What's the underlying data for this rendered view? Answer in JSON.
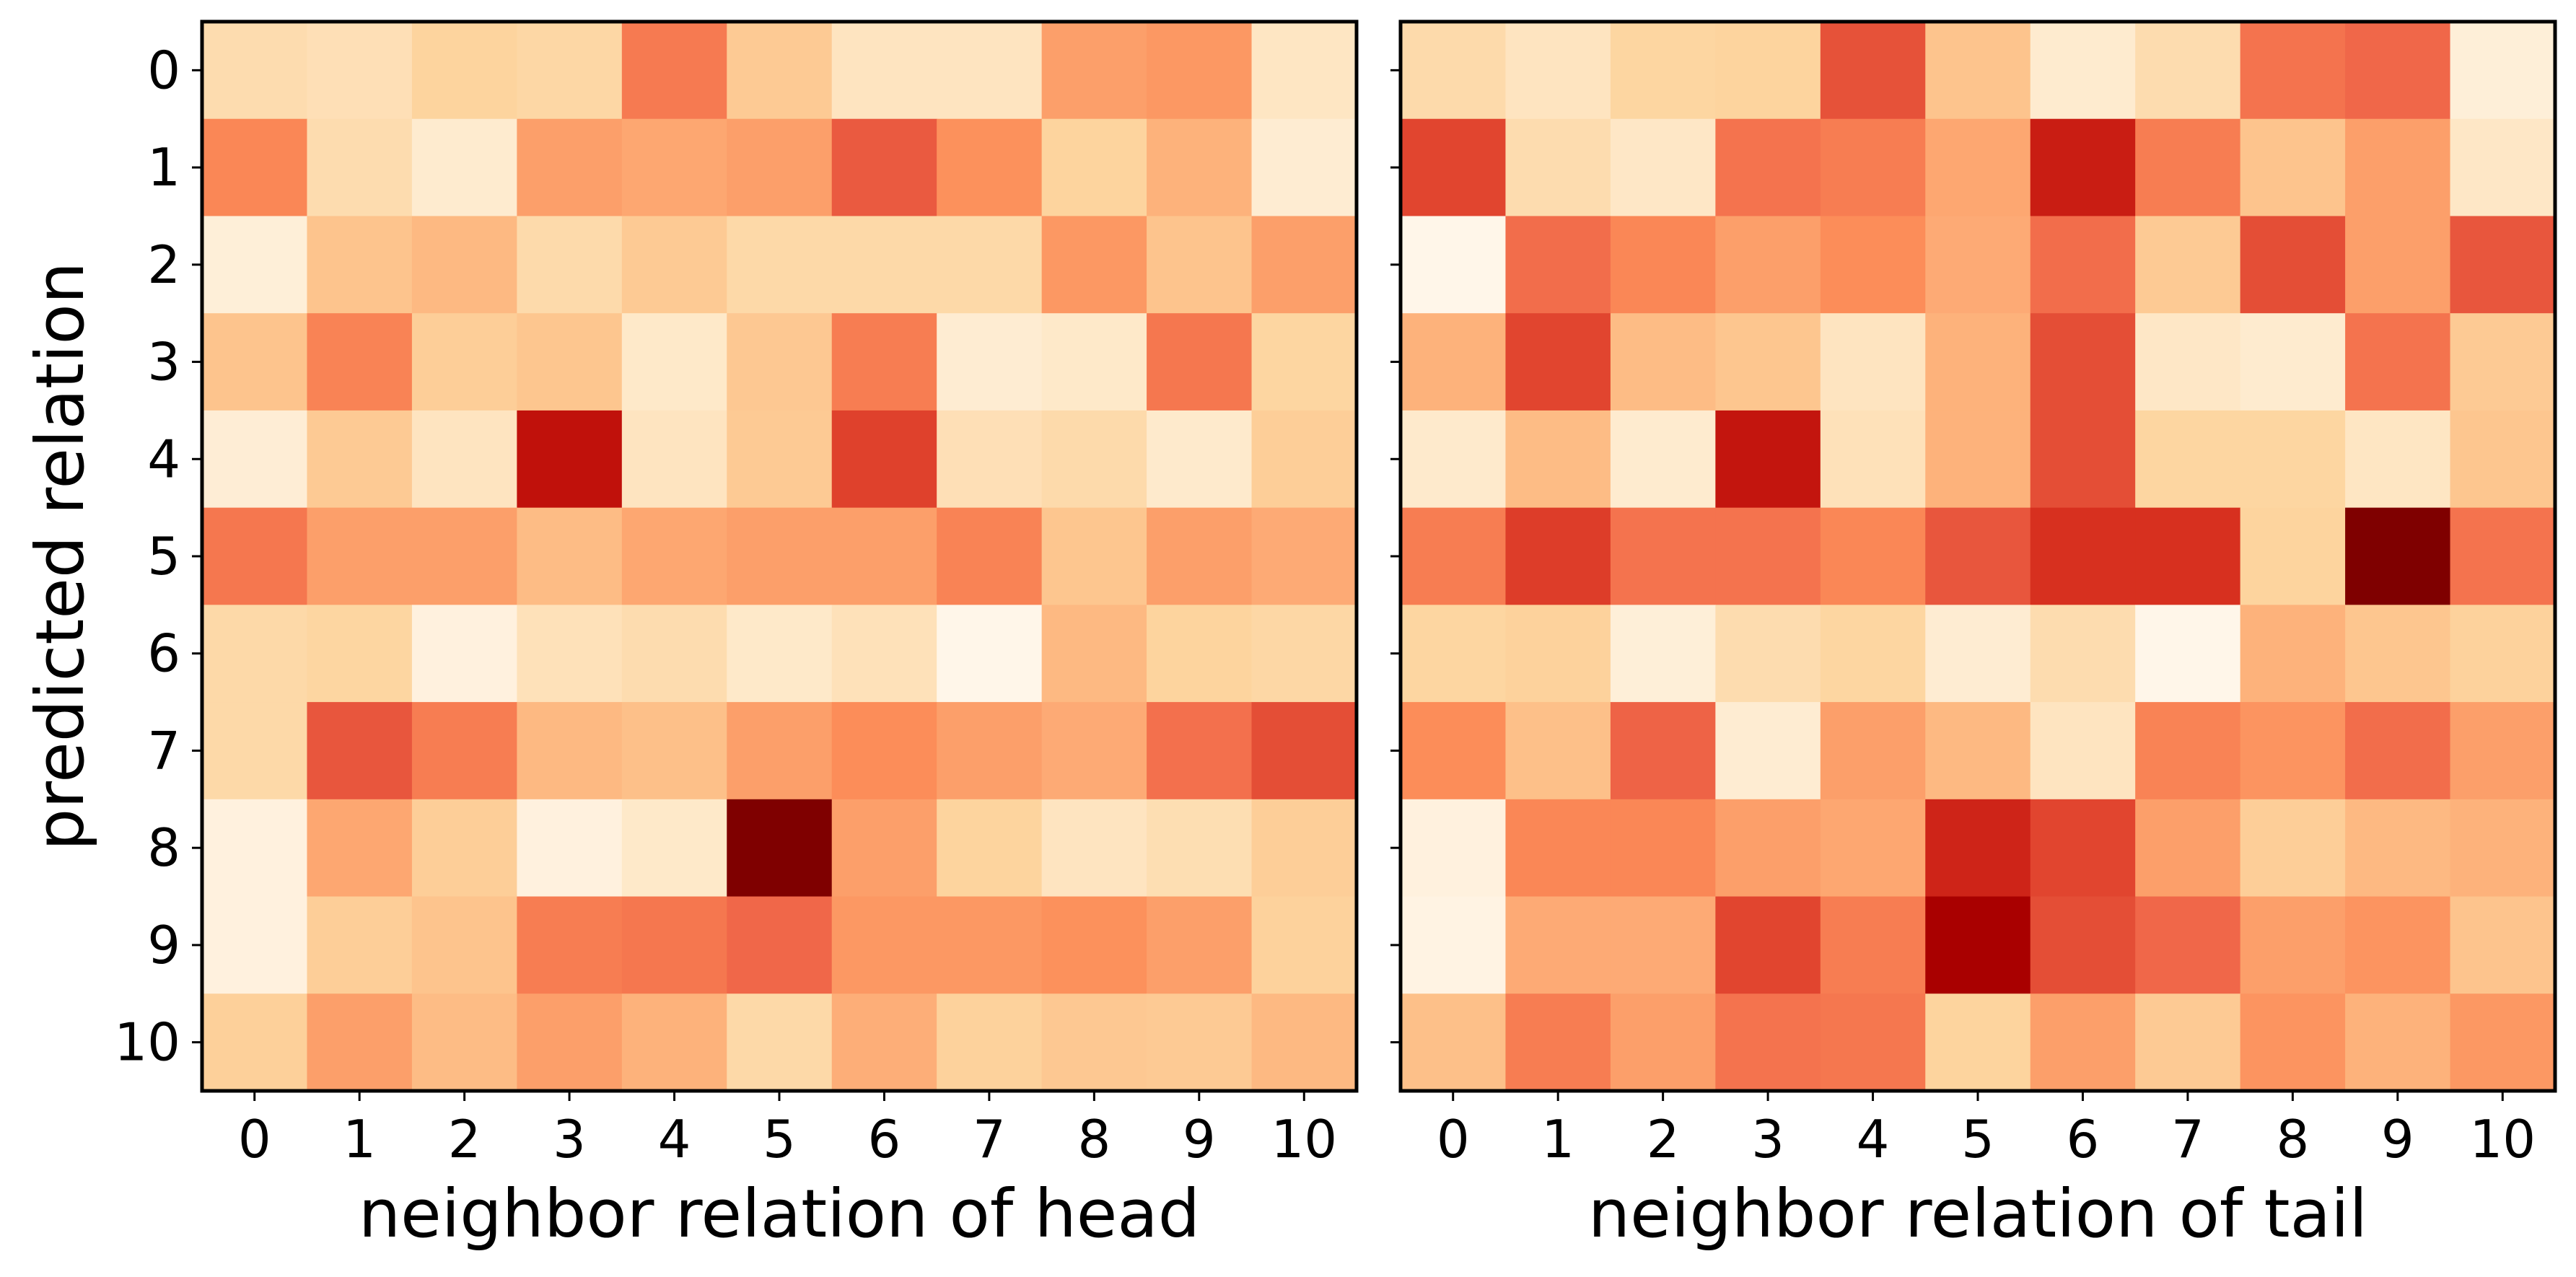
{
  "chart_data": [
    {
      "type": "heatmap",
      "panel": "left",
      "xlabel": "neighbor relation of head",
      "ylabel": "predicted relation",
      "x_tick_labels": [
        "0",
        "1",
        "2",
        "3",
        "4",
        "5",
        "6",
        "7",
        "8",
        "9",
        "10"
      ],
      "y_tick_labels": [
        "0",
        "1",
        "2",
        "3",
        "4",
        "5",
        "6",
        "7",
        "8",
        "9",
        "10"
      ],
      "colormap": "OrRd",
      "value_range": [
        0,
        1
      ],
      "values": [
        [
          0.2,
          0.18,
          0.25,
          0.23,
          0.56,
          0.3,
          0.15,
          0.15,
          0.45,
          0.47,
          0.14
        ],
        [
          0.52,
          0.2,
          0.1,
          0.45,
          0.43,
          0.45,
          0.65,
          0.49,
          0.25,
          0.4,
          0.09
        ],
        [
          0.07,
          0.33,
          0.38,
          0.21,
          0.3,
          0.22,
          0.22,
          0.22,
          0.47,
          0.33,
          0.45
        ],
        [
          0.33,
          0.53,
          0.28,
          0.32,
          0.12,
          0.31,
          0.55,
          0.09,
          0.12,
          0.57,
          0.24
        ],
        [
          0.08,
          0.3,
          0.15,
          0.83,
          0.15,
          0.3,
          0.71,
          0.18,
          0.21,
          0.11,
          0.28
        ],
        [
          0.57,
          0.45,
          0.45,
          0.37,
          0.43,
          0.45,
          0.45,
          0.53,
          0.32,
          0.45,
          0.42
        ],
        [
          0.22,
          0.24,
          0.05,
          0.17,
          0.2,
          0.12,
          0.17,
          0.01,
          0.38,
          0.25,
          0.23
        ],
        [
          0.22,
          0.66,
          0.55,
          0.38,
          0.35,
          0.45,
          0.5,
          0.45,
          0.42,
          0.59,
          0.68
        ],
        [
          0.05,
          0.43,
          0.28,
          0.05,
          0.12,
          1.0,
          0.45,
          0.25,
          0.15,
          0.19,
          0.28
        ],
        [
          0.05,
          0.28,
          0.33,
          0.55,
          0.57,
          0.62,
          0.47,
          0.47,
          0.49,
          0.45,
          0.26
        ],
        [
          0.27,
          0.45,
          0.37,
          0.45,
          0.4,
          0.22,
          0.41,
          0.26,
          0.31,
          0.3,
          0.38
        ]
      ]
    },
    {
      "type": "heatmap",
      "panel": "right",
      "xlabel": "neighbor relation of tail",
      "ylabel": "",
      "x_tick_labels": [
        "0",
        "1",
        "2",
        "3",
        "4",
        "5",
        "6",
        "7",
        "8",
        "9",
        "10"
      ],
      "y_tick_labels": [],
      "colormap": "OrRd",
      "value_range": [
        0,
        1
      ],
      "values": [
        [
          0.21,
          0.15,
          0.24,
          0.25,
          0.67,
          0.33,
          0.1,
          0.2,
          0.58,
          0.62,
          0.07
        ],
        [
          0.7,
          0.2,
          0.13,
          0.58,
          0.55,
          0.43,
          0.8,
          0.55,
          0.33,
          0.45,
          0.13
        ],
        [
          0.01,
          0.6,
          0.52,
          0.45,
          0.5,
          0.42,
          0.6,
          0.3,
          0.68,
          0.45,
          0.66
        ],
        [
          0.4,
          0.7,
          0.37,
          0.32,
          0.15,
          0.4,
          0.68,
          0.13,
          0.1,
          0.58,
          0.3
        ],
        [
          0.11,
          0.37,
          0.1,
          0.82,
          0.17,
          0.4,
          0.68,
          0.24,
          0.24,
          0.14,
          0.32
        ],
        [
          0.55,
          0.72,
          0.58,
          0.58,
          0.52,
          0.66,
          0.75,
          0.75,
          0.25,
          1.0,
          0.58
        ],
        [
          0.24,
          0.26,
          0.07,
          0.2,
          0.24,
          0.09,
          0.2,
          0.01,
          0.4,
          0.32,
          0.26
        ],
        [
          0.5,
          0.35,
          0.63,
          0.09,
          0.45,
          0.38,
          0.15,
          0.53,
          0.48,
          0.6,
          0.45
        ],
        [
          0.05,
          0.52,
          0.52,
          0.45,
          0.43,
          0.78,
          0.7,
          0.45,
          0.28,
          0.38,
          0.4
        ],
        [
          0.03,
          0.42,
          0.42,
          0.7,
          0.55,
          0.9,
          0.68,
          0.62,
          0.45,
          0.48,
          0.33
        ],
        [
          0.35,
          0.55,
          0.45,
          0.58,
          0.57,
          0.25,
          0.45,
          0.3,
          0.48,
          0.4,
          0.47
        ]
      ]
    }
  ]
}
